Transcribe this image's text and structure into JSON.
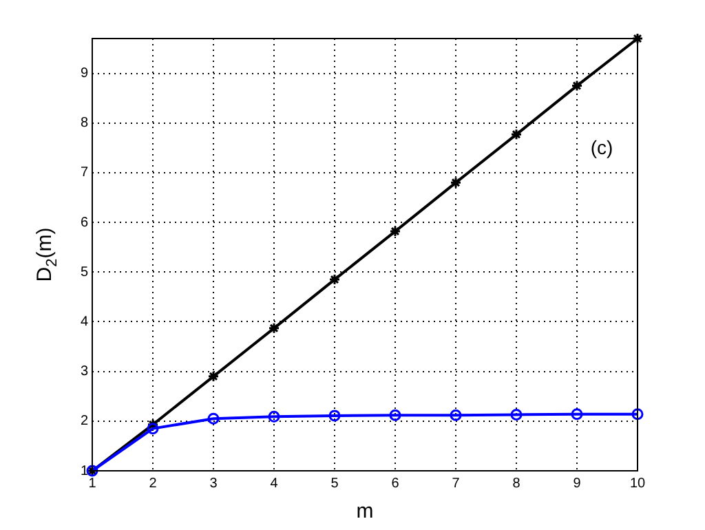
{
  "chart_data": {
    "type": "line",
    "xlabel": "m",
    "ylabel": "D$_{2}$(m)",
    "x": [
      1,
      2,
      3,
      4,
      5,
      6,
      7,
      8,
      9,
      10
    ],
    "series": [
      {
        "color": "#000000",
        "marker": "cross",
        "values": [
          1,
          1.93,
          2.9,
          3.87,
          4.85,
          5.82,
          6.8,
          7.77,
          8.75,
          9.7
        ]
      },
      {
        "color": "#0000ff",
        "marker": "circle",
        "values": [
          1,
          1.85,
          2.05,
          2.09,
          2.11,
          2.12,
          2.12,
          2.13,
          2.14,
          2.14
        ]
      }
    ],
    "xlim": [
      1,
      10
    ],
    "xticks": [
      1,
      2,
      3,
      4,
      5,
      6,
      7,
      8,
      9,
      10
    ],
    "ylim": [
      1,
      9.7
    ],
    "yticks": [
      1,
      2,
      3,
      4,
      5,
      6,
      7,
      8,
      9
    ],
    "grid": true,
    "legend": false,
    "line_style": "solid",
    "annotations": [
      "(c)"
    ]
  }
}
